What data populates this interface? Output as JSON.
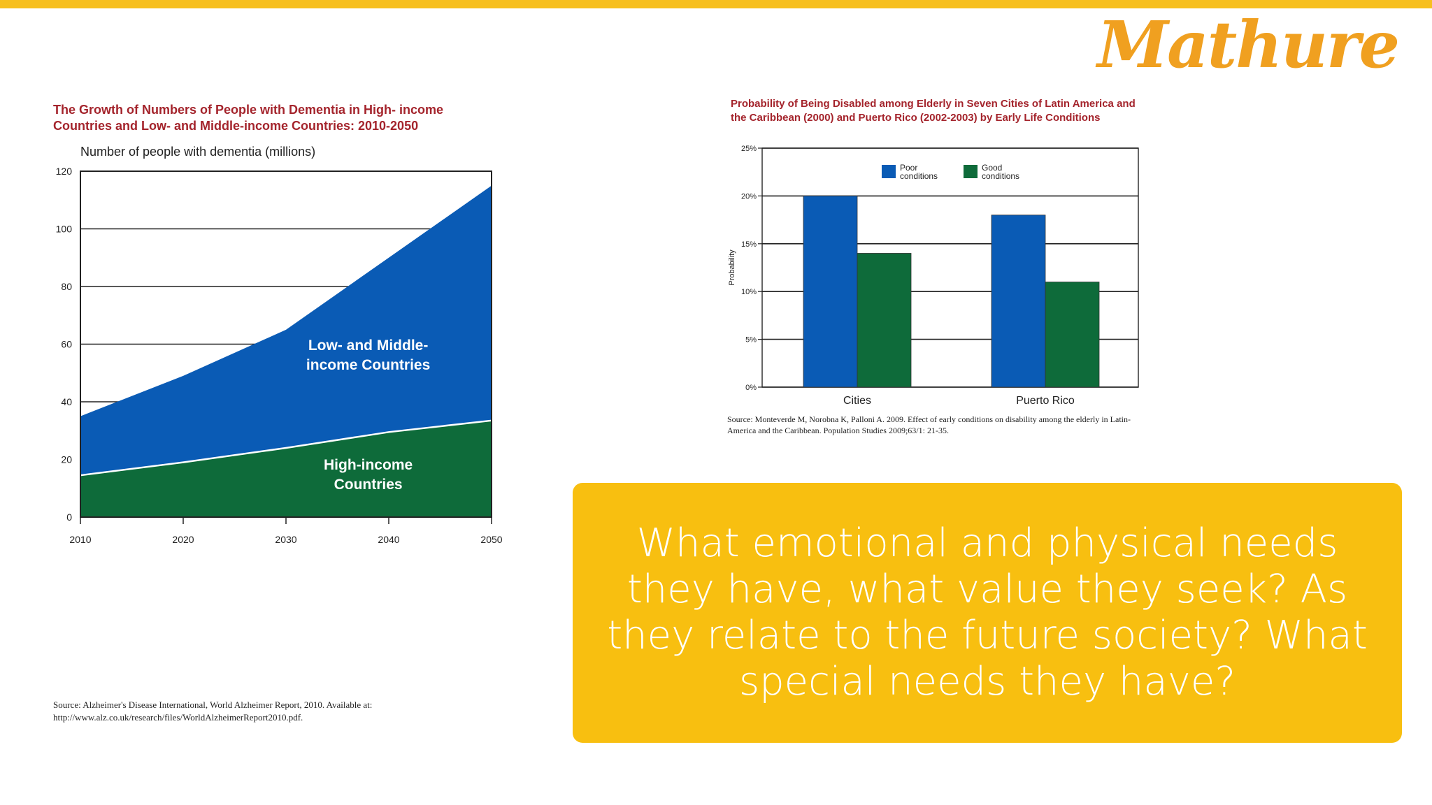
{
  "logo": {
    "text": "Mathure"
  },
  "colors": {
    "accent": "#f7bf1e",
    "callout": "#f8bf10",
    "blue": "#0a5bb5",
    "green": "#0e6b3a",
    "title_red": "#a4242c"
  },
  "callout": {
    "text": "What emotional and physical needs they have, what value they seek? As they relate to the future society? What special needs they have?"
  },
  "chart_data": [
    {
      "type": "area",
      "title": "The Growth of Numbers of People with Dementia in High- income Countries and Low- and Middle-income Countries: 2010-2050",
      "ylabel": "Number of people with dementia (millions)",
      "x": [
        2010,
        2020,
        2030,
        2040,
        2050
      ],
      "x_ticks": [
        "2010",
        "2020",
        "2030",
        "2040",
        "2050"
      ],
      "y_ticks": [
        "0",
        "20",
        "40",
        "60",
        "80",
        "100",
        "120"
      ],
      "ylim": [
        0,
        120
      ],
      "stacked": true,
      "series": [
        {
          "name": "High-income Countries",
          "label_lines": [
            "High-income",
            "Countries"
          ],
          "color": "#0e6b3a",
          "values": [
            14.5,
            19,
            24,
            29.5,
            33.5
          ]
        },
        {
          "name": "Low- and Middle-income Countries",
          "label_lines": [
            "Low- and Middle-",
            "income Countries"
          ],
          "color": "#0a5bb5",
          "values": [
            20.5,
            30,
            41,
            60.5,
            81.5
          ]
        }
      ],
      "totals": [
        35,
        49,
        65,
        90,
        115
      ],
      "grid": "horizontal",
      "source": "Source: Alzheimer's Disease International, World Alzheimer Report, 2010. Available at: http://www.alz.co.uk/research/files/WorldAlzheimerReport2010.pdf."
    },
    {
      "type": "bar",
      "title": "Probability of Being Disabled among Elderly in Seven Cities of Latin America and the Caribbean (2000) and Puerto Rico (2002-2003) by Early Life Conditions",
      "ylabel": "Probability",
      "categories": [
        "Cities",
        "Puerto Rico"
      ],
      "y_ticks": [
        "0%",
        "5%",
        "10%",
        "15%",
        "20%",
        "25%"
      ],
      "ylim": [
        0,
        25
      ],
      "series": [
        {
          "name": "Poor conditions",
          "legend_lines": [
            "Poor",
            "conditions"
          ],
          "color": "#0a5bb5",
          "values": [
            20,
            18
          ]
        },
        {
          "name": "Good conditions",
          "legend_lines": [
            "Good",
            "conditions"
          ],
          "color": "#0e6b3a",
          "values": [
            14,
            11
          ]
        }
      ],
      "legend": "top-left",
      "grid": "horizontal",
      "source": "Source: Monteverde M, Norobna K, Palloni A. 2009. Effect of early conditions on disability among the elderly in Latin-America and the Caribbean. Population Studies 2009;63/1: 21-35."
    }
  ]
}
